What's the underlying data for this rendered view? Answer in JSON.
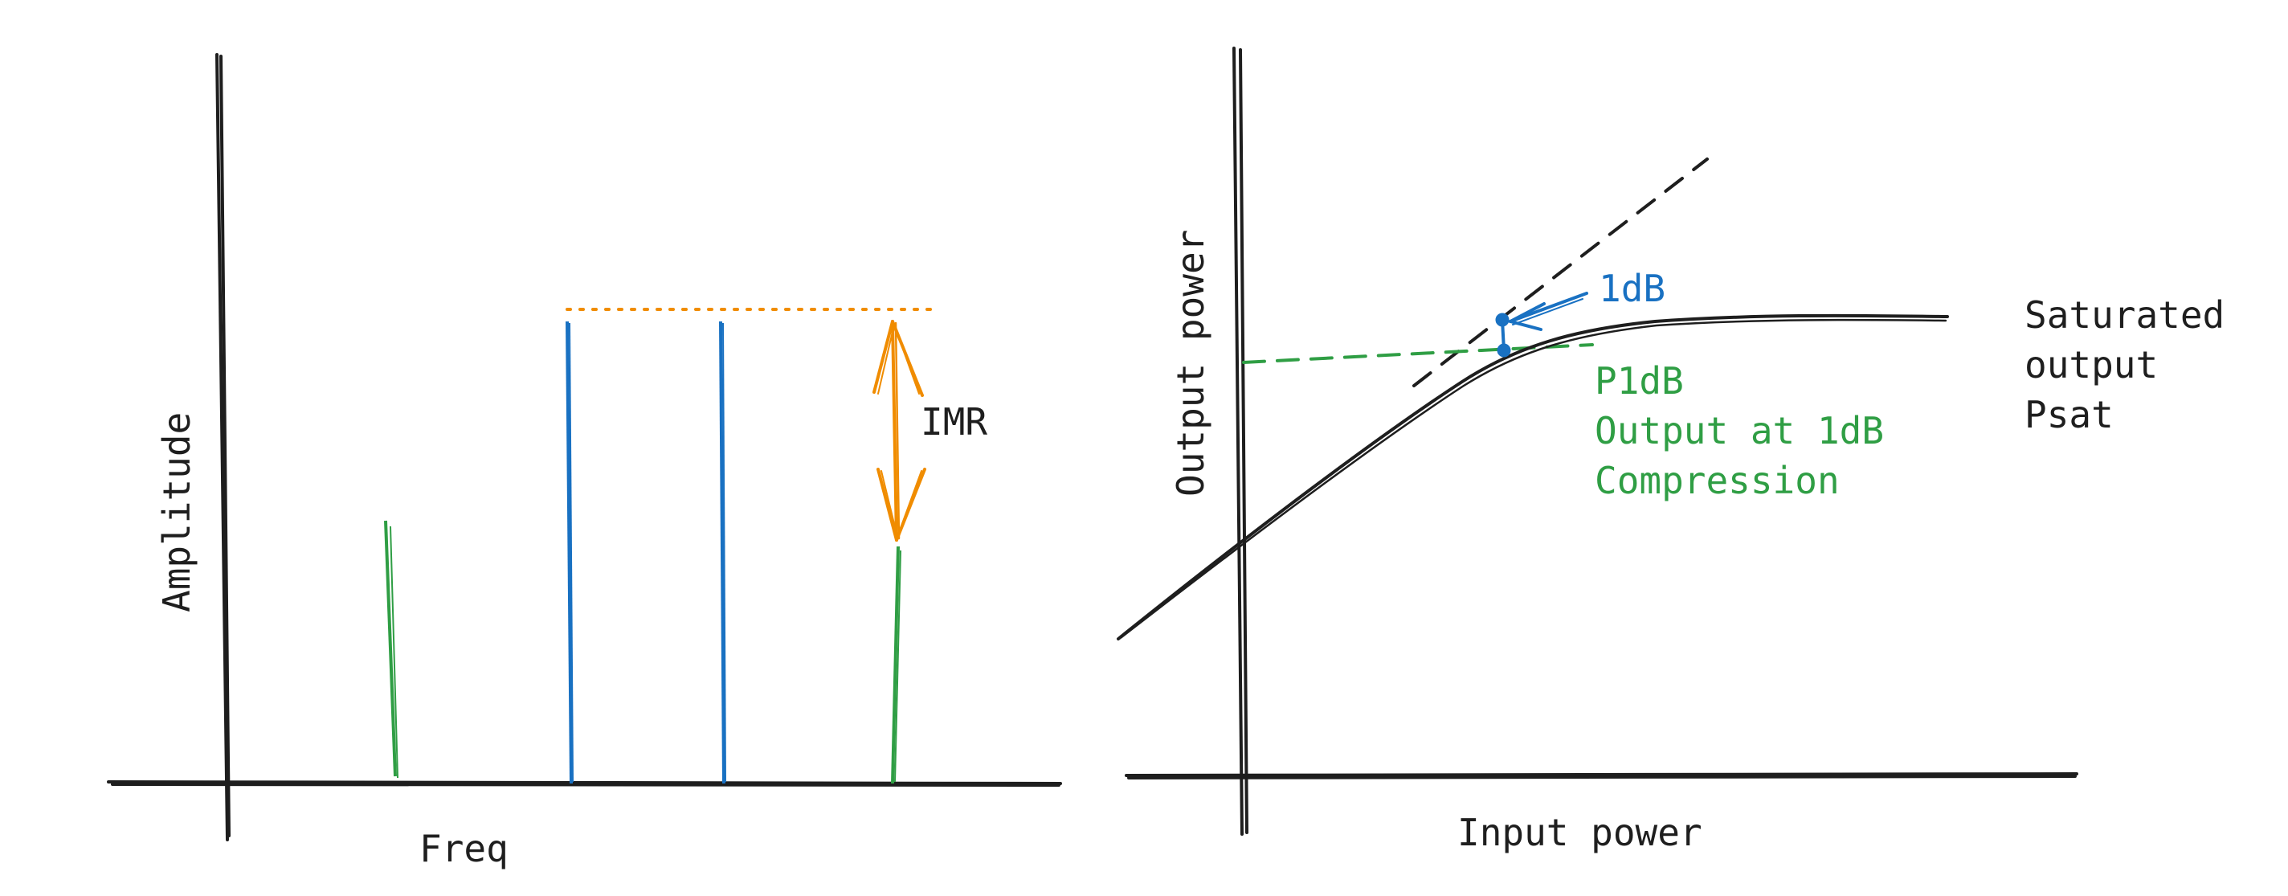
{
  "colors": {
    "axis": "#1e1e1e",
    "carrier": "#1971c2",
    "intermod": "#2f9e44",
    "imr": "#f08c00",
    "background": "#ffffff"
  },
  "left_diagram": {
    "y_axis_label": "Amplitude",
    "x_axis_label": "Freq",
    "imr_label": "IMR"
  },
  "right_diagram": {
    "y_axis_label": "Output power",
    "x_axis_label": "Input power",
    "one_db_label": "1dB",
    "p1db_lines": [
      "P1dB",
      "Output at 1dB",
      "Compression"
    ],
    "psat_lines": [
      "Saturated",
      "output",
      "Psat"
    ]
  }
}
